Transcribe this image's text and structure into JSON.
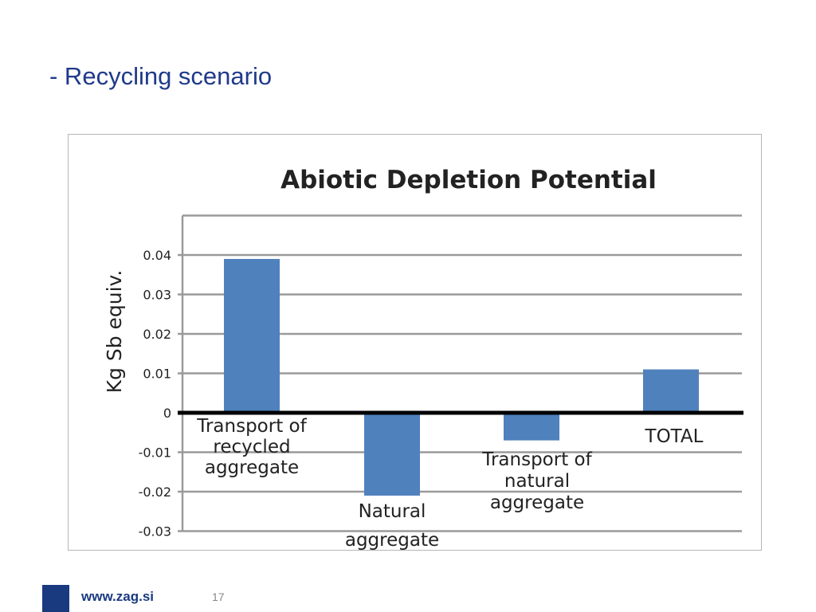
{
  "slide": {
    "title": "- Recycling scenario",
    "footer_url": "www.zag.si",
    "page_number": "17"
  },
  "colors": {
    "title": "#1f3a8a",
    "bar": "#4f81bd",
    "grid": "#9a9a9a",
    "zero_line": "#000000",
    "footer": "#1a3a80"
  },
  "chart_data": {
    "type": "bar",
    "title": "Abiotic Depletion Potential",
    "ylabel": "Kg Sb equiv.",
    "xlabel": "",
    "ylim": [
      -0.03,
      0.05
    ],
    "y_ticks": [
      "0.04",
      "0.03",
      "0.02",
      "0.01",
      "0",
      "-0.01",
      "-0.02",
      "-0.03"
    ],
    "tick_values": [
      0.04,
      0.03,
      0.02,
      0.01,
      0,
      -0.01,
      -0.02,
      -0.03
    ],
    "grid": true,
    "categories": [
      "Transport of recycled aggregate",
      "Natural aggregate",
      "Transport of natural aggregate",
      "TOTAL"
    ],
    "category_label_lines": [
      [
        "Transport of",
        "recycled",
        "aggregate"
      ],
      [
        "Natural",
        "aggregate"
      ],
      [
        "Transport of",
        "natural",
        "aggregate"
      ],
      [
        "TOTAL"
      ]
    ],
    "values": [
      0.039,
      -0.021,
      -0.007,
      0.011
    ]
  }
}
